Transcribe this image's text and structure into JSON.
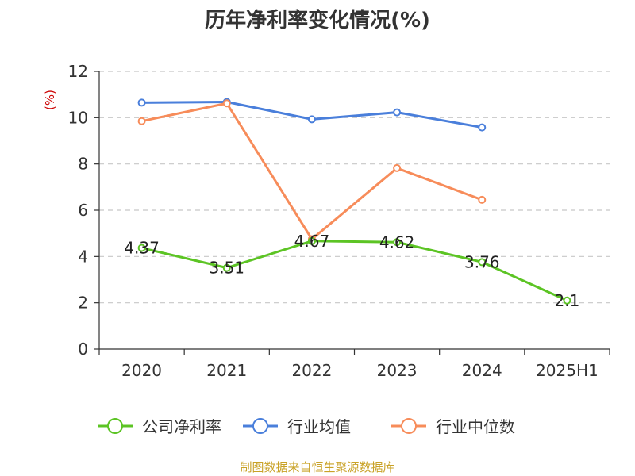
{
  "chart_data": {
    "type": "line",
    "title": "历年净利率变化情况(%)",
    "ylabel": "(%)",
    "xlabel": "",
    "categories": [
      "2020",
      "2021",
      "2022",
      "2023",
      "2024",
      "2025H1"
    ],
    "ylim": [
      0,
      12
    ],
    "yticks": [
      0,
      2,
      4,
      6,
      8,
      10,
      12
    ],
    "grid": true,
    "legend_position": "bottom",
    "series": [
      {
        "name": "公司净利率",
        "color": "#5cc424",
        "values": [
          4.37,
          3.51,
          4.67,
          4.62,
          3.76,
          2.1
        ],
        "labels": [
          "4.37",
          "3.51",
          "4.67",
          "4.62",
          "3.76",
          "2.1"
        ]
      },
      {
        "name": "行业均值",
        "color": "#4a7fdb",
        "values": [
          10.65,
          10.68,
          9.93,
          10.23,
          9.58,
          null
        ]
      },
      {
        "name": "行业中位数",
        "color": "#f78c5a",
        "values": [
          9.85,
          10.62,
          4.75,
          7.82,
          6.45,
          null
        ]
      }
    ],
    "source": "制图数据来自恒生聚源数据库"
  }
}
